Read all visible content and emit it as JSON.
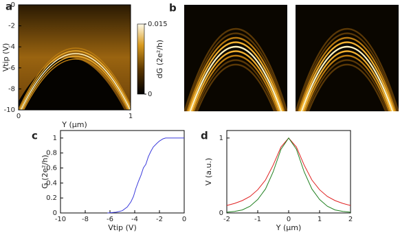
{
  "chart_data": [
    {
      "type": "heatmap",
      "panel": "a",
      "xlabel": "Y (µm)",
      "ylabel": "Vtip (V)",
      "xlim": [
        0,
        1
      ],
      "ylim": [
        -10,
        0
      ],
      "xticks": [
        0,
        1
      ],
      "yticks": [
        0,
        -2,
        -4,
        -6,
        -8,
        -10
      ],
      "colorbar": {
        "label": "dG (2e²/h)",
        "lim": [
          0,
          0.015
        ],
        "ticks": [
          0,
          0.015
        ]
      }
    },
    {
      "type": "image",
      "panel": "b"
    },
    {
      "type": "line",
      "panel": "c",
      "xlabel": "Vtip (V)",
      "ylabel": "G (2e²/h)",
      "xlim": [
        -10,
        0
      ],
      "ylim": [
        0,
        1.1
      ],
      "xticks": [
        -10,
        -8,
        -6,
        -4,
        -2,
        0
      ],
      "yticks": [
        0,
        0.2,
        0.4,
        0.6,
        0.8,
        1
      ],
      "x": [
        -6.2,
        -5.5,
        -5,
        -4.6,
        -4.3,
        -4.1,
        -3.9,
        -3.7,
        -3.5,
        -3.3,
        -3.1,
        -2.9,
        -2.7,
        -2.5,
        -2.2,
        -2,
        -1.7,
        -1.5,
        -1,
        0
      ],
      "series": [
        {
          "color": "#3a3adc",
          "values": [
            0,
            0.01,
            0.03,
            0.08,
            0.15,
            0.22,
            0.33,
            0.42,
            0.5,
            0.6,
            0.65,
            0.75,
            0.82,
            0.88,
            0.93,
            0.96,
            0.99,
            1,
            1,
            1
          ]
        }
      ]
    },
    {
      "type": "line",
      "panel": "d",
      "xlabel": "Y (µm)",
      "ylabel": "V (a.u.)",
      "xlim": [
        -2,
        2
      ],
      "ylim": [
        0,
        1.1
      ],
      "xticks": [
        -2,
        -1,
        0,
        1,
        2
      ],
      "yticks": [
        0,
        1
      ],
      "x": [
        -2,
        -1.75,
        -1.5,
        -1.25,
        -1,
        -0.75,
        -0.5,
        -0.25,
        0,
        0.25,
        0.5,
        0.75,
        1,
        1.25,
        1.5,
        1.75,
        2
      ],
      "series": [
        {
          "color": "#e02020",
          "values": [
            0.1,
            0.127,
            0.165,
            0.22,
            0.31,
            0.44,
            0.64,
            0.88,
            1,
            0.88,
            0.64,
            0.44,
            0.31,
            0.22,
            0.165,
            0.127,
            0.1
          ]
        },
        {
          "color": "#208020",
          "values": [
            0.01,
            0.02,
            0.04,
            0.09,
            0.18,
            0.32,
            0.55,
            0.85,
            1,
            0.85,
            0.55,
            0.32,
            0.18,
            0.09,
            0.04,
            0.02,
            0.01
          ]
        }
      ]
    }
  ]
}
